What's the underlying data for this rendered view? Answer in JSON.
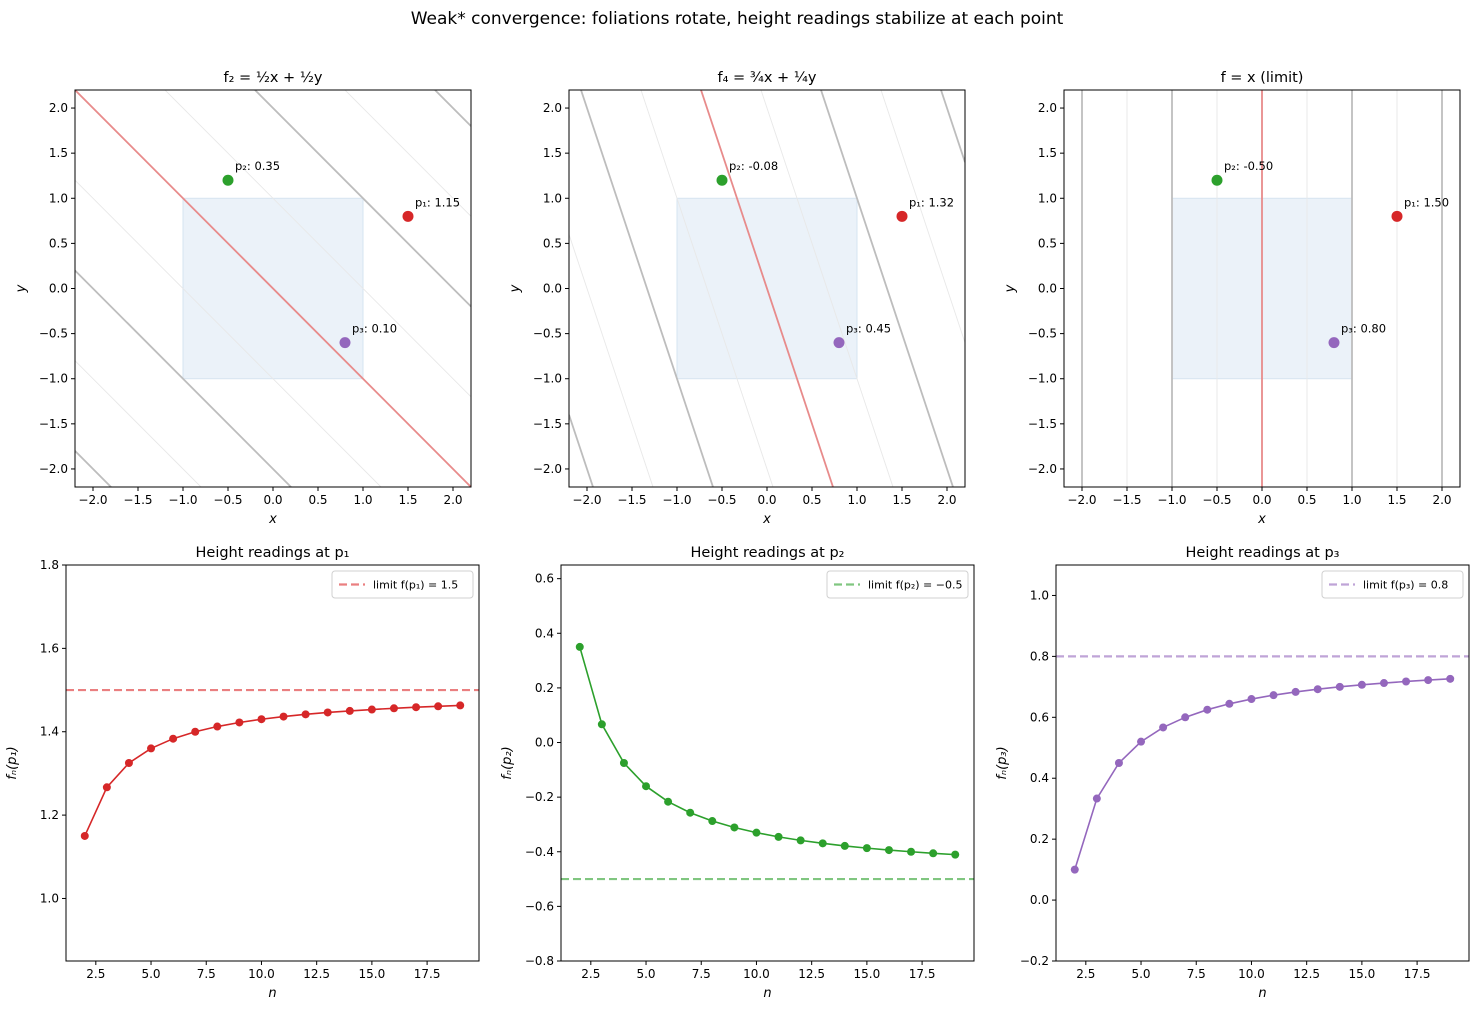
{
  "suptitle": "Weak* convergence: foliations rotate, height readings stabilize at each point",
  "chart_data": [
    {
      "type": "line",
      "kind": "level-sets",
      "title": "f₂ = ½x + ½y",
      "coef_x": 0.5,
      "coef_y": 0.5,
      "xlabel": "x",
      "ylabel": "y",
      "xlim": [
        -2.2,
        2.2
      ],
      "ylim": [
        -2.2,
        2.2
      ],
      "ticks": [
        -2.0,
        -1.5,
        -1.0,
        -0.5,
        0.0,
        0.5,
        1.0,
        1.5,
        2.0
      ],
      "tick_labels": [
        "−2.0",
        "−1.5",
        "−1.0",
        "−0.5",
        "0.0",
        "0.5",
        "1.0",
        "1.5",
        "2.0"
      ],
      "levels_major": [
        -2,
        -1,
        1,
        2
      ],
      "levels_minor": [
        -2.5,
        -1.5,
        -0.5,
        0.5,
        1.5,
        2.5
      ],
      "level_zero": 0,
      "square": [
        -1,
        1
      ],
      "points": [
        {
          "label": "p₁: 1.15",
          "x": 1.5,
          "y": 0.8,
          "color": "#d62728"
        },
        {
          "label": "p₂: 0.35",
          "x": -0.5,
          "y": 1.2,
          "color": "#2ca02c"
        },
        {
          "label": "p₃: 0.10",
          "x": 0.8,
          "y": -0.6,
          "color": "#9467bd"
        }
      ]
    },
    {
      "type": "line",
      "kind": "level-sets",
      "title": "f₄ = ¾x + ¼y",
      "coef_x": 0.75,
      "coef_y": 0.25,
      "xlabel": "x",
      "ylabel": "y",
      "xlim": [
        -2.2,
        2.2
      ],
      "ylim": [
        -2.2,
        2.2
      ],
      "ticks": [
        -2.0,
        -1.5,
        -1.0,
        -0.5,
        0.0,
        0.5,
        1.0,
        1.5,
        2.0
      ],
      "tick_labels": [
        "−2.0",
        "−1.5",
        "−1.0",
        "−0.5",
        "0.0",
        "0.5",
        "1.0",
        "1.5",
        "2.0"
      ],
      "levels_major": [
        -2,
        -1,
        1,
        2
      ],
      "levels_minor": [
        -2.5,
        -1.5,
        -0.5,
        0.5,
        1.5,
        2.5
      ],
      "level_zero": 0,
      "square": [
        -1,
        1
      ],
      "points": [
        {
          "label": "p₁: 1.32",
          "x": 1.5,
          "y": 0.8,
          "color": "#d62728"
        },
        {
          "label": "p₂: -0.08",
          "x": -0.5,
          "y": 1.2,
          "color": "#2ca02c"
        },
        {
          "label": "p₃: 0.45",
          "x": 0.8,
          "y": -0.6,
          "color": "#9467bd"
        }
      ]
    },
    {
      "type": "line",
      "kind": "level-sets",
      "title": "f = x (limit)",
      "coef_x": 1,
      "coef_y": 0,
      "xlabel": "x",
      "ylabel": "y",
      "xlim": [
        -2.2,
        2.2
      ],
      "ylim": [
        -2.2,
        2.2
      ],
      "ticks": [
        -2.0,
        -1.5,
        -1.0,
        -0.5,
        0.0,
        0.5,
        1.0,
        1.5,
        2.0
      ],
      "tick_labels": [
        "−2.0",
        "−1.5",
        "−1.0",
        "−0.5",
        "0.0",
        "0.5",
        "1.0",
        "1.5",
        "2.0"
      ],
      "levels_major": [
        -2,
        -1,
        1,
        2
      ],
      "levels_minor": [
        -2.5,
        -1.5,
        -0.5,
        0.5,
        1.5,
        2.5
      ],
      "level_zero": 0,
      "square": [
        -1,
        1
      ],
      "points": [
        {
          "label": "p₁: 1.50",
          "x": 1.5,
          "y": 0.8,
          "color": "#d62728"
        },
        {
          "label": "p₂: -0.50",
          "x": -0.5,
          "y": 1.2,
          "color": "#2ca02c"
        },
        {
          "label": "p₃: 0.80",
          "x": 0.8,
          "y": -0.6,
          "color": "#9467bd"
        }
      ]
    },
    {
      "type": "line",
      "title": "Height readings at p₁",
      "xlabel": "n",
      "ylabel": "fₙ(p₁)",
      "x": [
        2,
        3,
        4,
        5,
        6,
        7,
        8,
        9,
        10,
        11,
        12,
        13,
        14,
        15,
        16,
        17,
        18,
        19
      ],
      "values": [
        1.15,
        1.2667,
        1.325,
        1.36,
        1.3833,
        1.4,
        1.4125,
        1.4222,
        1.43,
        1.4364,
        1.4417,
        1.4462,
        1.45,
        1.4533,
        1.4563,
        1.4588,
        1.4611,
        1.4632
      ],
      "color": "#d62728",
      "limit": {
        "value": 1.5,
        "label": "limit f(p₁) = 1.5",
        "color": "#ea7f80"
      },
      "legend": "top-right",
      "xlim": [
        1.15,
        19.85
      ],
      "ylim": [
        0.85,
        1.8
      ],
      "xticks": [
        2.5,
        5,
        7.5,
        10,
        12.5,
        15,
        17.5
      ],
      "xtick_labels": [
        "2.5",
        "5.0",
        "7.5",
        "10.0",
        "12.5",
        "15.0",
        "17.5"
      ],
      "yticks": [
        1.0,
        1.2,
        1.4,
        1.6,
        1.8
      ],
      "ytick_labels": [
        "1.0",
        "1.2",
        "1.4",
        "1.6",
        "1.8"
      ]
    },
    {
      "type": "line",
      "title": "Height readings at p₂",
      "xlabel": "n",
      "ylabel": "fₙ(p₂)",
      "x": [
        2,
        3,
        4,
        5,
        6,
        7,
        8,
        9,
        10,
        11,
        12,
        13,
        14,
        15,
        16,
        17,
        18,
        19
      ],
      "values": [
        0.35,
        0.0667,
        -0.075,
        -0.16,
        -0.2167,
        -0.2571,
        -0.2875,
        -0.3111,
        -0.33,
        -0.3455,
        -0.3583,
        -0.3692,
        -0.3786,
        -0.3867,
        -0.3938,
        -0.4,
        -0.4056,
        -0.4105
      ],
      "color": "#2ca02c",
      "limit": {
        "value": -0.5,
        "label": "limit f(p₂) = −0.5",
        "color": "#80c680"
      },
      "legend": "top-right",
      "xlim": [
        1.15,
        19.85
      ],
      "ylim": [
        -0.8,
        0.65
      ],
      "xticks": [
        2.5,
        5,
        7.5,
        10,
        12.5,
        15,
        17.5
      ],
      "xtick_labels": [
        "2.5",
        "5.0",
        "7.5",
        "10.0",
        "12.5",
        "15.0",
        "17.5"
      ],
      "yticks": [
        -0.8,
        -0.6,
        -0.4,
        -0.2,
        0.0,
        0.2,
        0.4,
        0.6
      ],
      "ytick_labels": [
        "−0.8",
        "−0.6",
        "−0.4",
        "−0.2",
        "0.0",
        "0.2",
        "0.4",
        "0.6"
      ]
    },
    {
      "type": "line",
      "title": "Height readings at p₃",
      "xlabel": "n",
      "ylabel": "fₙ(p₃)",
      "x": [
        2,
        3,
        4,
        5,
        6,
        7,
        8,
        9,
        10,
        11,
        12,
        13,
        14,
        15,
        16,
        17,
        18,
        19
      ],
      "values": [
        0.1,
        0.3333,
        0.45,
        0.52,
        0.5667,
        0.6,
        0.625,
        0.6444,
        0.66,
        0.6727,
        0.6833,
        0.6923,
        0.7,
        0.7067,
        0.7125,
        0.7176,
        0.7222,
        0.7263
      ],
      "color": "#9467bd",
      "limit": {
        "value": 0.8,
        "label": "limit f(p₃) = 0.8",
        "color": "#bfa4d7"
      },
      "legend": "top-right",
      "xlim": [
        1.15,
        19.85
      ],
      "ylim": [
        -0.2,
        1.1
      ],
      "xticks": [
        2.5,
        5,
        7.5,
        10,
        12.5,
        15,
        17.5
      ],
      "xtick_labels": [
        "2.5",
        "5.0",
        "7.5",
        "10.0",
        "12.5",
        "15.0",
        "17.5"
      ],
      "yticks": [
        -0.2,
        0.0,
        0.2,
        0.4,
        0.6,
        0.8,
        1.0
      ],
      "ytick_labels": [
        "−0.2",
        "0.0",
        "0.2",
        "0.4",
        "0.6",
        "0.8",
        "1.0"
      ]
    }
  ]
}
